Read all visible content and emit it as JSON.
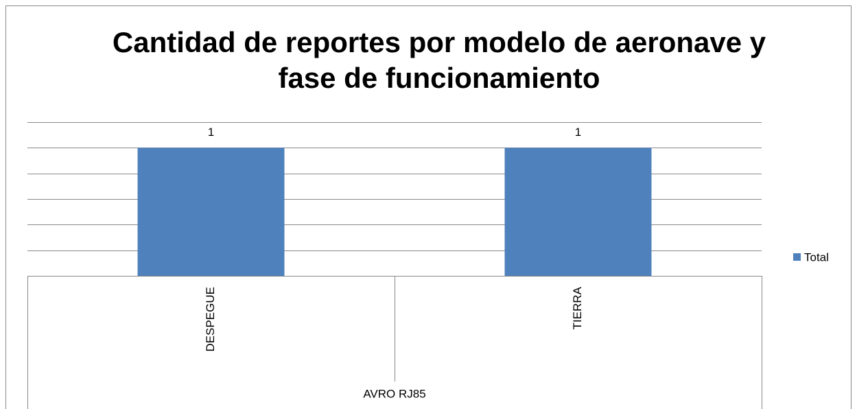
{
  "chart_data": {
    "type": "bar",
    "title": "Cantidad de reportes por modelo de aeronave y fase de funcionamiento",
    "categories": [
      "DESPEGUE",
      "TIERRA"
    ],
    "category_group": "AVRO RJ85",
    "series": [
      {
        "name": "Total",
        "color": "#4f81bd",
        "values": [
          1,
          1
        ]
      }
    ],
    "ylim": [
      0,
      1.2
    ],
    "yticks": [
      0,
      0.2,
      0.4,
      0.6,
      0.8,
      1,
      1.2
    ],
    "grid": true,
    "legend": "right"
  }
}
